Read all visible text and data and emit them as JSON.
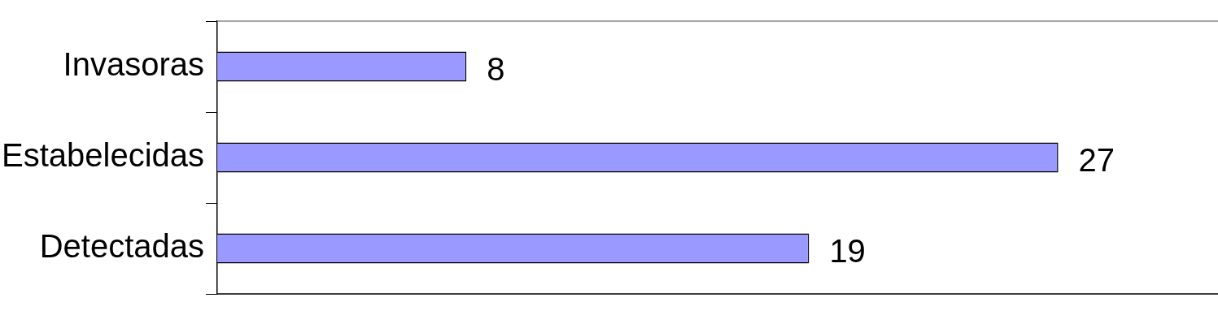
{
  "chart_data": {
    "type": "bar",
    "orientation": "horizontal",
    "categories": [
      "Invasoras",
      "Estabelecidas",
      "Detectadas"
    ],
    "values": [
      8,
      27,
      19
    ],
    "data_labels": true,
    "color": "#9999ff",
    "tick_labels": "y"
  }
}
